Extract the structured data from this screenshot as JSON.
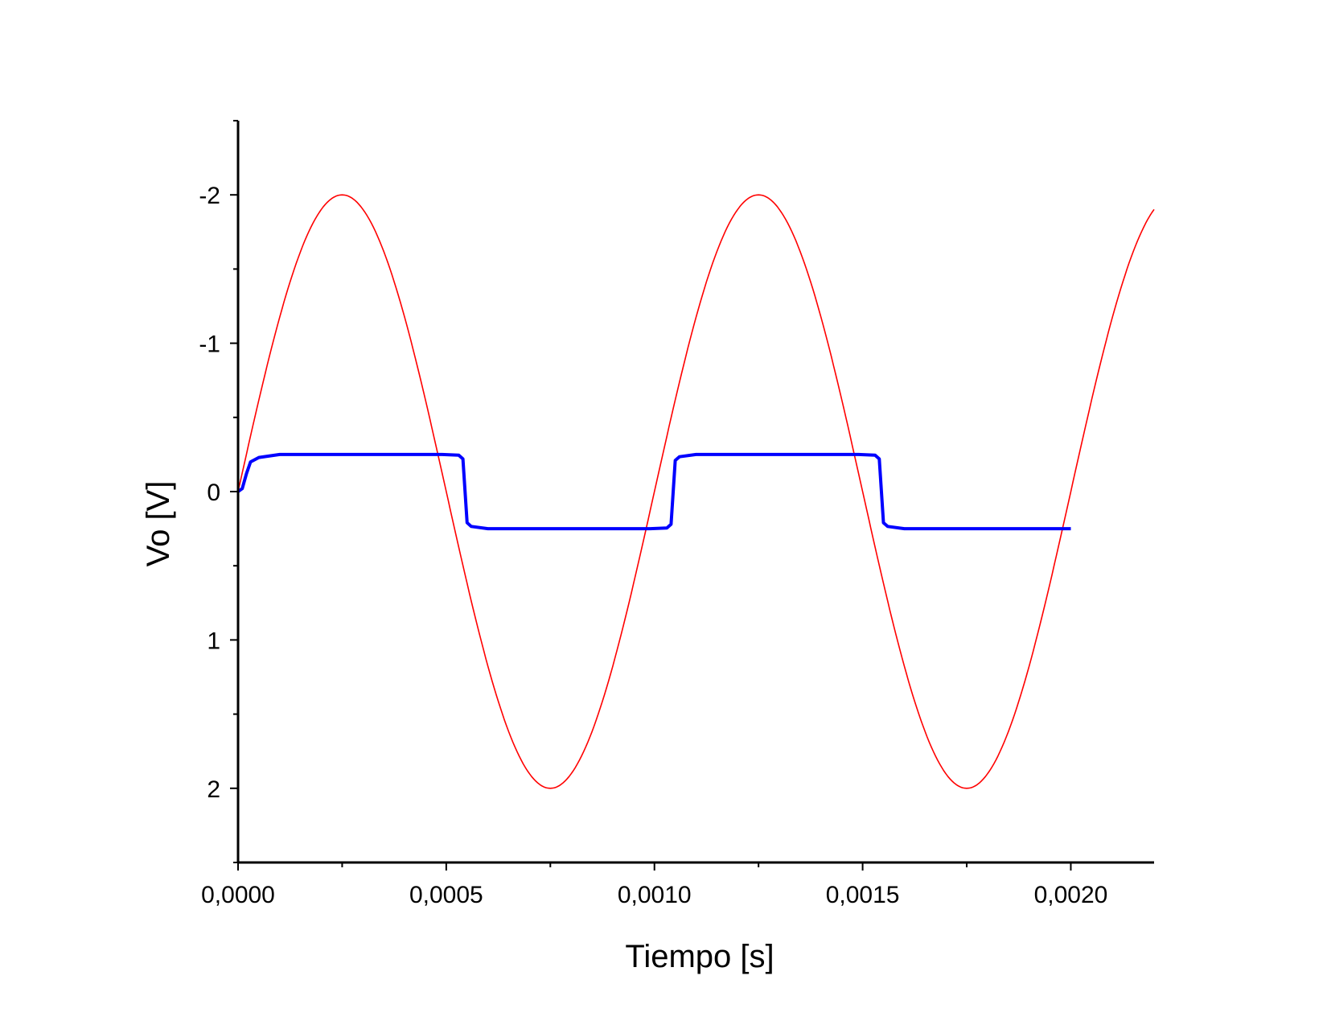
{
  "chart_data": {
    "type": "line",
    "title": "",
    "xlabel": "Tiempo [s]",
    "ylabel": "Vo [V]",
    "xlim": [
      0.0,
      0.0022
    ],
    "ylim": [
      2.5,
      -2.5
    ],
    "y_axis_inverted": true,
    "x_ticks": [
      0.0,
      0.0005,
      0.001,
      0.0015,
      0.002
    ],
    "x_tick_labels": [
      "0,0000",
      "0,0005",
      "0,0010",
      "0,0015",
      "0,0020"
    ],
    "y_ticks": [
      -2,
      -1,
      0,
      1,
      2
    ],
    "y_tick_labels": [
      "-2",
      "-1",
      "0",
      "1",
      "2"
    ],
    "grid": false,
    "legend": "none",
    "series": [
      {
        "color": "#ff0000",
        "style": "thin",
        "x": [
          0.0,
          5e-05,
          0.0001,
          0.00015,
          0.0002,
          0.00025,
          0.0003,
          0.00035,
          0.0004,
          0.00045,
          0.0005,
          0.00055,
          0.0006,
          0.00065,
          0.0007,
          0.00075,
          0.0008,
          0.00085,
          0.0009,
          0.00095,
          0.001,
          0.00105,
          0.0011,
          0.00115,
          0.0012,
          0.00125,
          0.0013,
          0.00135,
          0.0014,
          0.00145,
          0.0015,
          0.00155,
          0.0016,
          0.00165,
          0.0017,
          0.00175,
          0.0018,
          0.00185,
          0.0019,
          0.00195,
          0.002,
          0.00205,
          0.0021,
          0.00215,
          0.0022
        ],
        "y": [
          0.0,
          -0.618,
          -1.176,
          -1.618,
          -1.902,
          -2.0,
          -1.902,
          -1.618,
          -1.176,
          -0.618,
          0.0,
          0.618,
          1.176,
          1.618,
          1.902,
          2.0,
          1.902,
          1.618,
          1.176,
          0.618,
          0.0,
          -0.618,
          -1.176,
          -1.618,
          -1.902,
          -2.0,
          -1.902,
          -1.618,
          -1.176,
          -0.618,
          0.0,
          0.618,
          1.176,
          1.618,
          1.902,
          2.0,
          1.902,
          1.618,
          1.176,
          0.618,
          0.0,
          -0.618,
          -1.176,
          -1.618,
          -1.902
        ]
      },
      {
        "color": "#0000ff",
        "style": "thick",
        "x": [
          0.0,
          1e-05,
          2e-05,
          3e-05,
          5e-05,
          0.0001,
          0.0002,
          0.0003,
          0.0004,
          0.00049,
          0.00053,
          0.00054,
          0.00055,
          0.00056,
          0.0006,
          0.0007,
          0.0008,
          0.0009,
          0.00099,
          0.00103,
          0.00104,
          0.00105,
          0.00106,
          0.0011,
          0.0012,
          0.0013,
          0.0014,
          0.00149,
          0.00153,
          0.00154,
          0.00155,
          0.00156,
          0.0016,
          0.0017,
          0.0018,
          0.0019,
          0.002
        ],
        "y": [
          0.0,
          -0.02,
          -0.12,
          -0.2,
          -0.23,
          -0.25,
          -0.25,
          -0.25,
          -0.25,
          -0.25,
          -0.245,
          -0.22,
          0.21,
          0.235,
          0.25,
          0.25,
          0.25,
          0.25,
          0.25,
          0.245,
          0.22,
          -0.21,
          -0.235,
          -0.25,
          -0.25,
          -0.25,
          -0.25,
          -0.25,
          -0.245,
          -0.22,
          0.21,
          0.235,
          0.25,
          0.25,
          0.25,
          0.25,
          0.25
        ]
      }
    ]
  }
}
